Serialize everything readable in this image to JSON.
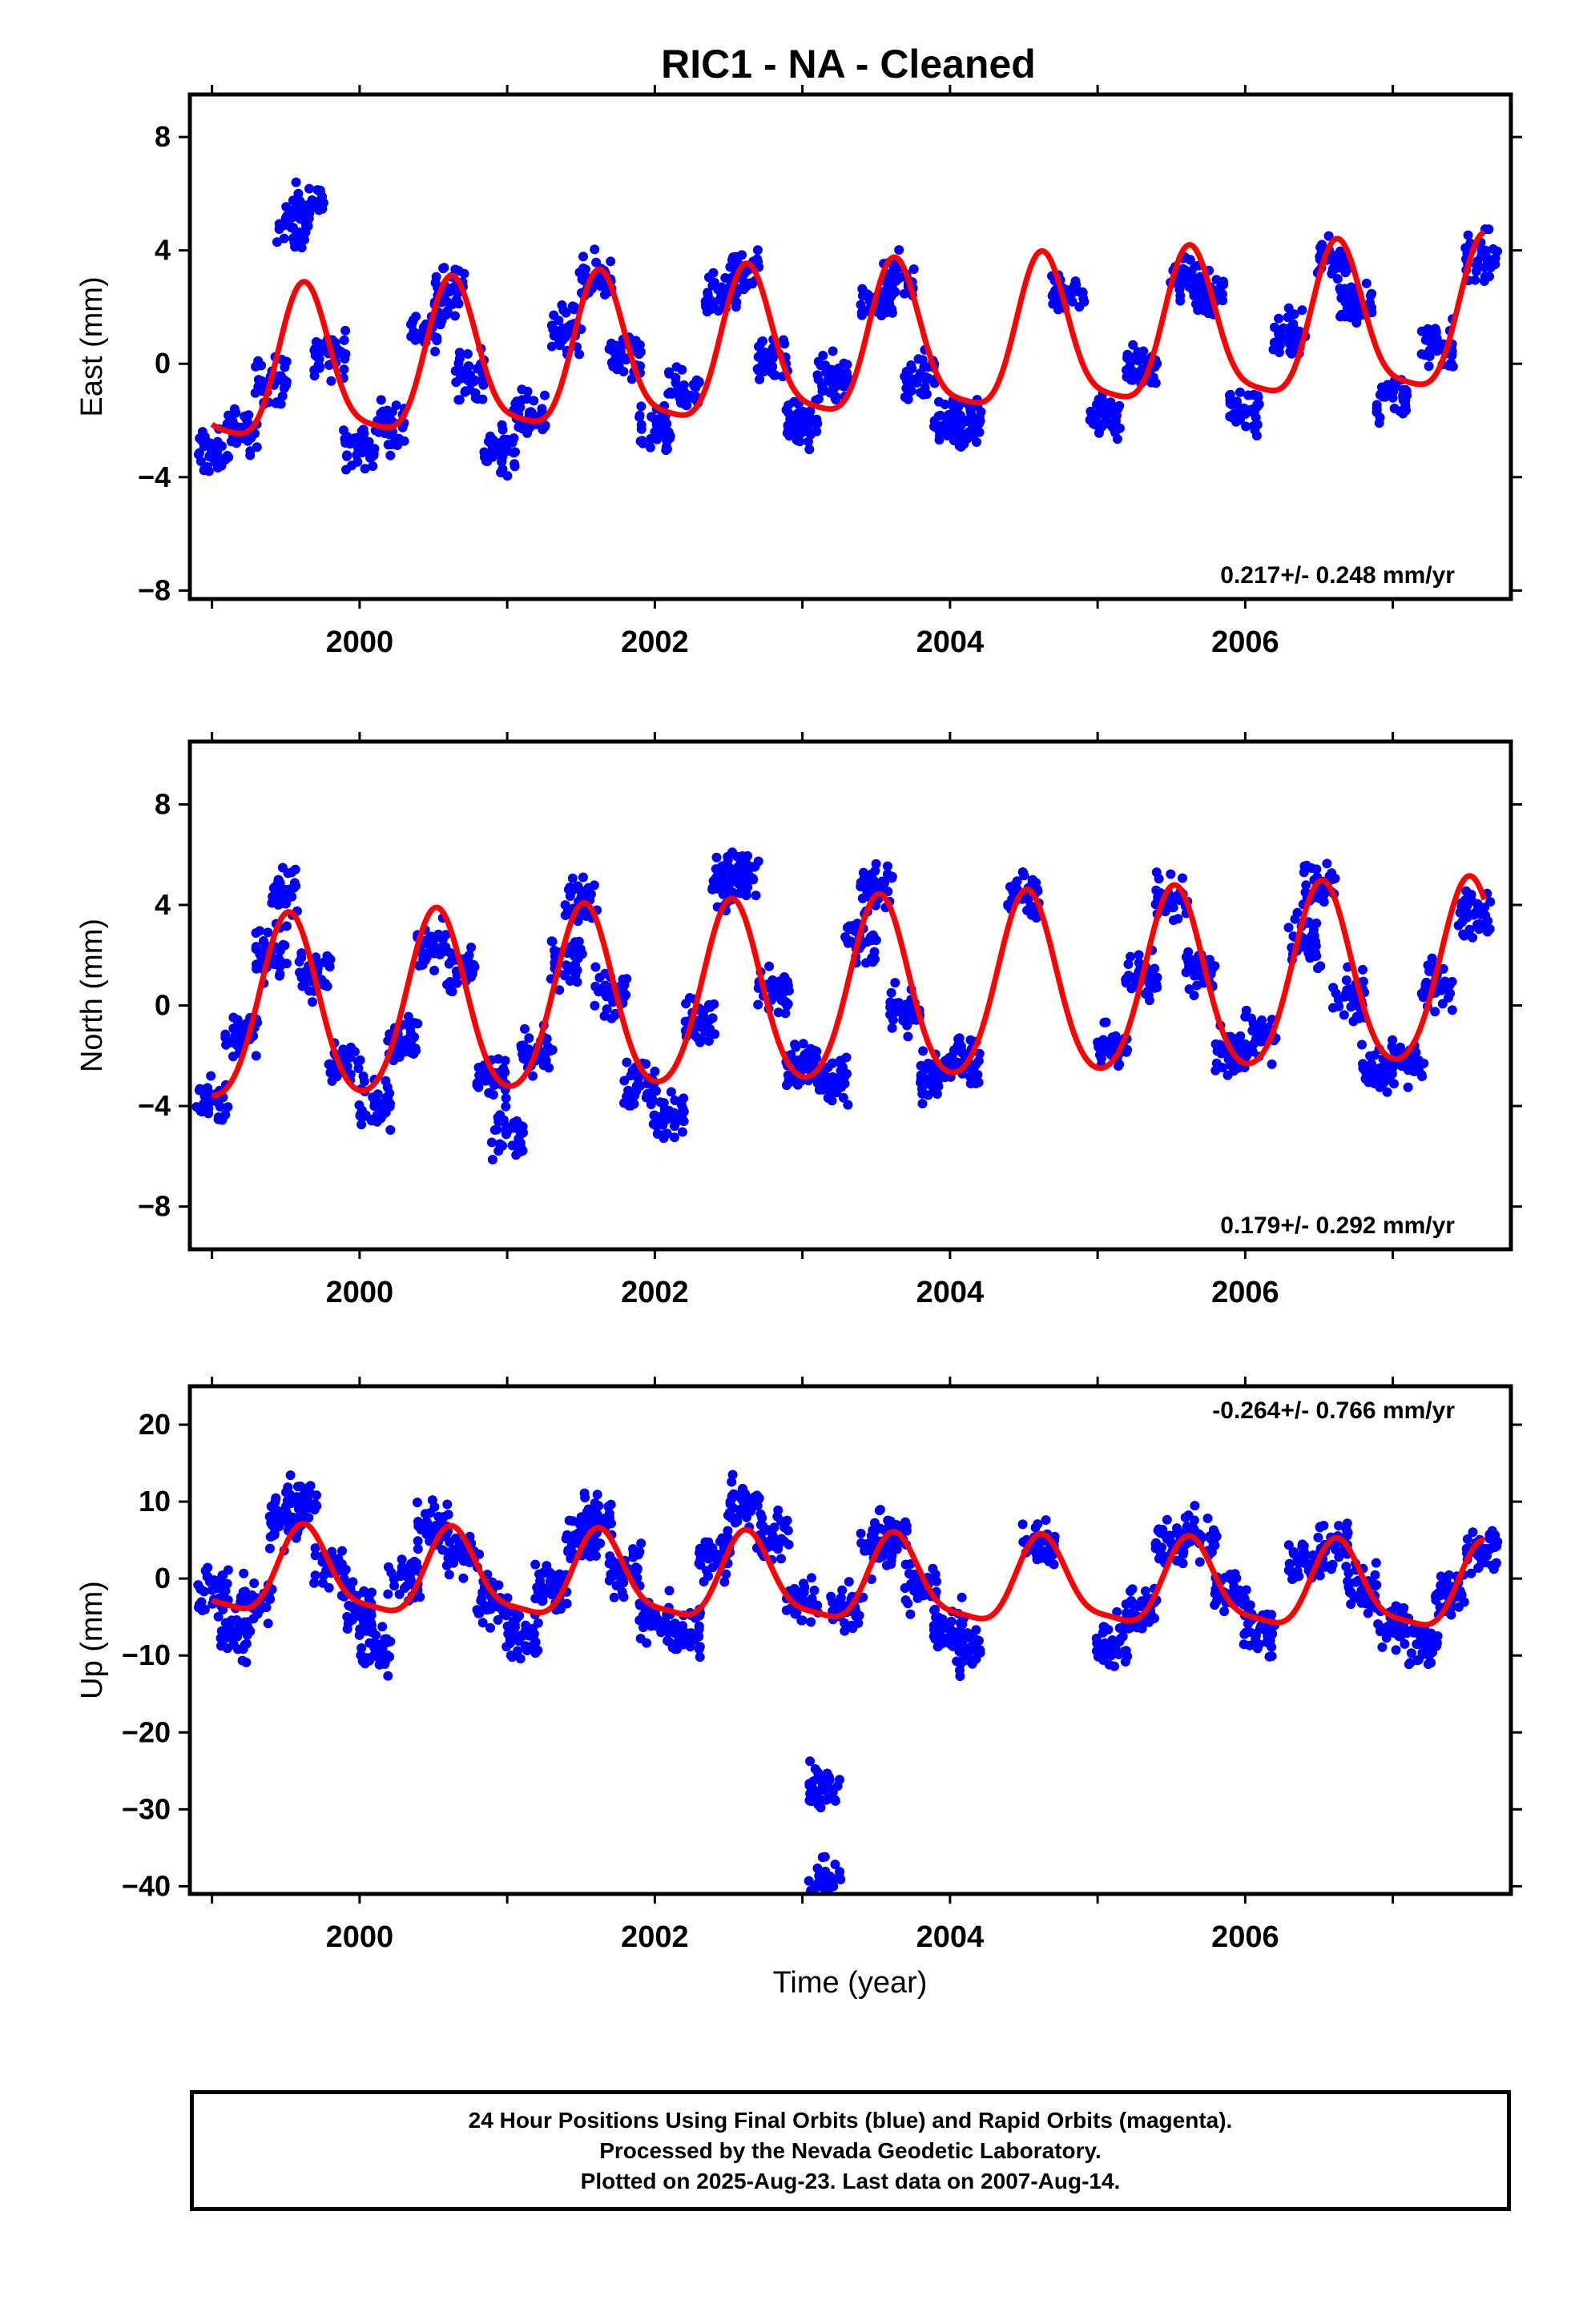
{
  "title": "RIC1  - NA - Cleaned",
  "colors": {
    "data": "#0000ff",
    "fit": "#ff0000",
    "axis": "#000000",
    "background": "#ffffff"
  },
  "xaxis": {
    "label": "Time (year)",
    "range": [
      1998.85,
      2007.8
    ],
    "ticks": [
      2000,
      2002,
      2004,
      2006
    ],
    "minor_step": 1
  },
  "footer": {
    "line1": "24 Hour Positions Using Final Orbits (blue) and Rapid Orbits (magenta).",
    "line2": "Processed by the Nevada Geodetic Laboratory.",
    "line3": "Plotted on 2025-Aug-23. Last data on 2007-Aug-14."
  },
  "chart_data": [
    {
      "type": "scatter",
      "component": "east",
      "ylabel": "East (mm)",
      "ylim": [
        -8.3,
        9.5
      ],
      "yticks": [
        -8,
        -4,
        0,
        4,
        8
      ],
      "ytick_labels": [
        "−8",
        "−4",
        "0",
        "4",
        "8"
      ],
      "velocity_label": "0.217+/- 0.248 mm/yr",
      "velocity_mm_per_yr": 0.217,
      "velocity_sigma": 0.248,
      "series": [
        {
          "kind": "points",
          "x": [
            1999.0,
            1999.2,
            1999.4,
            1999.55,
            1999.65,
            1999.8,
            2000.0,
            2000.2,
            2000.45,
            2000.6,
            2000.75,
            2000.95,
            2001.15,
            2001.4,
            2001.6,
            2001.8,
            2002.0,
            2002.2,
            2002.45,
            2002.6,
            2002.8,
            2003.0,
            2003.2,
            2003.5,
            2003.65,
            2003.8,
            2004.0,
            2004.1,
            2004.8,
            2005.05,
            2005.3,
            2005.6,
            2005.75,
            2006.0,
            2006.3,
            2006.6,
            2006.75,
            2007.0,
            2007.3,
            2007.6
          ],
          "y": [
            -3.2,
            -2.4,
            -0.6,
            4.8,
            5.6,
            0.4,
            -3.0,
            -2.2,
            1.4,
            2.6,
            -0.4,
            -3.1,
            -1.8,
            1.2,
            3.0,
            0.2,
            -2.4,
            -1.0,
            2.4,
            3.2,
            0.2,
            -2.2,
            -0.6,
            2.2,
            3.0,
            -0.4,
            -2.2,
            -2.0,
            2.6,
            -1.8,
            -0.2,
            3.0,
            2.4,
            -1.6,
            1.0,
            3.6,
            2.2,
            -1.2,
            0.6,
            3.8
          ]
        },
        {
          "kind": "fit_model",
          "mean": 0.5,
          "trend": 0.217,
          "t0": 2003.3,
          "annual_amp": 2.6,
          "annual_peak": 1999.63,
          "semiannual_amp": 0.6,
          "semiannual_phase": 0.2
        }
      ]
    },
    {
      "type": "scatter",
      "component": "north",
      "ylabel": "North (mm)",
      "ylim": [
        -9.7,
        10.5
      ],
      "yticks": [
        -8,
        -4,
        0,
        4,
        8
      ],
      "ytick_labels": [
        "−8",
        "−4",
        "0",
        "4",
        "8"
      ],
      "velocity_label": "0.179+/- 0.292 mm/yr",
      "velocity_mm_per_yr": 0.179,
      "velocity_sigma": 0.292,
      "series": [
        {
          "kind": "points",
          "x": [
            1999.0,
            1999.2,
            1999.4,
            1999.5,
            1999.7,
            1999.9,
            2000.1,
            2000.3,
            2000.5,
            2000.7,
            2000.9,
            2001.0,
            2001.2,
            2001.4,
            2001.5,
            2001.7,
            2001.9,
            2002.1,
            2002.3,
            2002.5,
            2002.6,
            2002.8,
            2003.0,
            2003.2,
            2003.4,
            2003.5,
            2003.7,
            2003.9,
            2004.1,
            2004.5,
            2005.1,
            2005.3,
            2005.5,
            2005.7,
            2005.9,
            2006.1,
            2006.4,
            2006.5,
            2006.7,
            2006.9,
            2007.1,
            2007.3,
            2007.55
          ],
          "y": [
            -3.8,
            -1.2,
            2.0,
            4.4,
            1.2,
            -2.4,
            -4.0,
            -1.4,
            2.4,
            1.6,
            -2.8,
            -5.0,
            -1.8,
            1.6,
            4.2,
            0.4,
            -3.2,
            -4.4,
            -0.6,
            4.8,
            5.2,
            0.6,
            -2.4,
            -3.0,
            2.4,
            4.6,
            -0.2,
            -2.8,
            -2.0,
            4.4,
            -1.6,
            1.2,
            4.2,
            1.4,
            -2.0,
            -1.2,
            2.6,
            4.8,
            0.4,
            -2.6,
            -2.2,
            0.8,
            3.6
          ]
        },
        {
          "kind": "fit_model",
          "mean": 0.4,
          "trend": 0.179,
          "t0": 2003.3,
          "annual_amp": 3.6,
          "annual_peak": 1999.52,
          "semiannual_amp": 0.4,
          "semiannual_phase": 0.0
        }
      ]
    },
    {
      "type": "scatter",
      "component": "up",
      "ylabel": "Up (mm)",
      "ylim": [
        -41.0,
        25.0
      ],
      "yticks": [
        -40,
        -30,
        -20,
        -10,
        0,
        10,
        20
      ],
      "ytick_labels": [
        "−40",
        "−30",
        "−20",
        "−10",
        "0",
        "10",
        "20"
      ],
      "velocity_label": "-0.264+/- 0.766 mm/yr",
      "velocity_mm_per_yr": -0.264,
      "velocity_sigma": 0.766,
      "series": [
        {
          "kind": "points",
          "x": [
            1999.0,
            1999.15,
            1999.3,
            1999.5,
            1999.6,
            1999.8,
            2000.0,
            2000.1,
            2000.3,
            2000.5,
            2000.7,
            2000.9,
            2001.1,
            2001.3,
            2001.5,
            2001.6,
            2001.8,
            2002.0,
            2002.2,
            2002.4,
            2002.6,
            2002.8,
            2003.0,
            2003.15,
            2003.15,
            2003.3,
            2003.5,
            2003.6,
            2003.8,
            2004.0,
            2004.1,
            2004.6,
            2005.1,
            2005.3,
            2005.5,
            2005.7,
            2005.9,
            2006.1,
            2006.4,
            2006.6,
            2006.8,
            2007.0,
            2007.2,
            2007.4,
            2007.6
          ],
          "y": [
            -1.5,
            -7.0,
            -2.5,
            7.5,
            9.5,
            1.5,
            -4.0,
            -9.0,
            0.5,
            6.5,
            3.5,
            -3.0,
            -7.5,
            -1.0,
            5.0,
            7.5,
            1.0,
            -5.0,
            -7.0,
            3.0,
            10.0,
            5.5,
            -2.5,
            -27.5,
            -39.5,
            -4.0,
            4.0,
            6.0,
            -1.5,
            -6.5,
            -9.0,
            4.5,
            -8.0,
            -3.5,
            4.5,
            5.5,
            -2.0,
            -6.5,
            2.0,
            4.5,
            -1.5,
            -6.0,
            -8.5,
            -2.0,
            4.0
          ]
        },
        {
          "kind": "fit_model",
          "mean": -0.6,
          "trend": -0.264,
          "t0": 2003.3,
          "annual_amp": 5.4,
          "annual_peak": 1999.63,
          "semiannual_amp": 1.4,
          "semiannual_phase": 0.3
        }
      ]
    }
  ]
}
